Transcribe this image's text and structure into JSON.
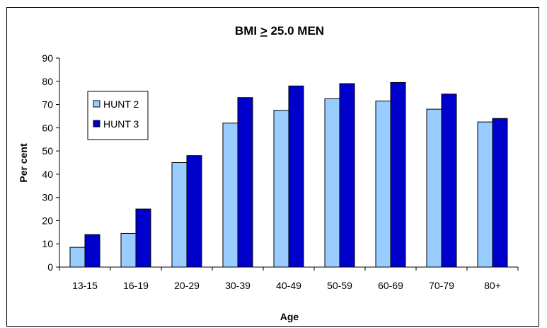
{
  "chart_data": {
    "type": "bar",
    "title": "BMI > 25.0  MEN",
    "title_parts": {
      "prefix": "BMI ",
      "underlined": ">",
      "suffix": " 25.0  MEN"
    },
    "xlabel": "Age",
    "ylabel": "Per cent",
    "ylim": [
      0,
      90
    ],
    "yticks": [
      0,
      10,
      20,
      30,
      40,
      50,
      60,
      70,
      80,
      90
    ],
    "categories": [
      "13-15",
      "16-19",
      "20-29",
      "30-39",
      "40-49",
      "50-59",
      "60-69",
      "70-79",
      "80+"
    ],
    "series": [
      {
        "name": "HUNT 2",
        "color": "#99ccff",
        "values": [
          8.5,
          14.5,
          45,
          62,
          67.5,
          72.5,
          71.5,
          68,
          62.5
        ]
      },
      {
        "name": "HUNT 3",
        "color": "#0000cc",
        "values": [
          14,
          25,
          48,
          73,
          78,
          79,
          79.5,
          74.5,
          64
        ]
      }
    ],
    "grid": false,
    "legend_position": "top-left"
  }
}
